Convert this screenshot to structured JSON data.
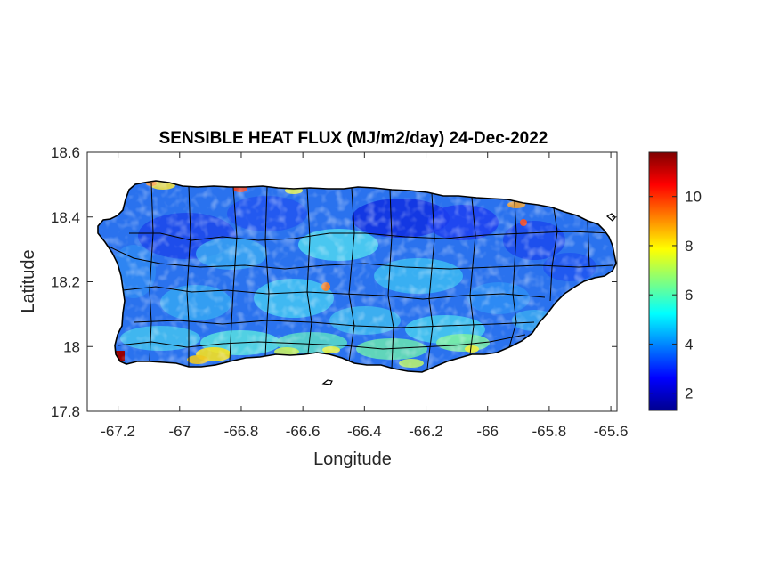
{
  "chart_data": {
    "type": "heatmap",
    "title": "SENSIBLE HEAT FLUX (MJ/m2/day) 24-Dec-2022",
    "xlabel": "Longitude",
    "ylabel": "Latitude",
    "xlim": [
      -67.3,
      -65.58
    ],
    "ylim": [
      17.8,
      18.6
    ],
    "x_ticks": [
      -67.2,
      -67,
      -66.8,
      -66.6,
      -66.4,
      -66.2,
      -66,
      -65.8,
      -65.6
    ],
    "x_tick_labels": [
      "-67.2",
      "-67",
      "-66.8",
      "-66.6",
      "-66.4",
      "-66.2",
      "-66",
      "-65.8",
      "-65.6"
    ],
    "y_ticks": [
      17.8,
      18,
      18.2,
      18.4,
      18.6
    ],
    "y_tick_labels": [
      "17.8",
      "18",
      "18.2",
      "18.4",
      "18.6"
    ],
    "colorbar": {
      "colormap": "jet",
      "range": [
        1.3,
        11.8
      ],
      "ticks": [
        2,
        4,
        6,
        8,
        10
      ],
      "tick_labels": [
        "2",
        "4",
        "6",
        "8",
        "10"
      ]
    },
    "grid": false,
    "field_summary": "Mostly 2-6 MJ/m2/day across the island; higher values (7-9) along the southern coast; maximum (~11) at the southwest tip"
  }
}
